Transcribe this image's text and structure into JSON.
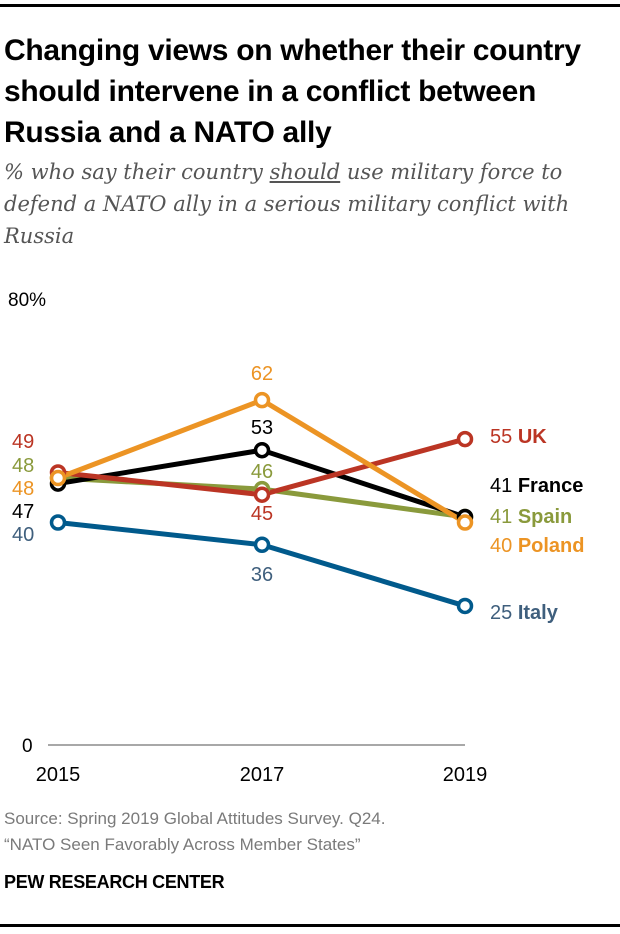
{
  "title": "Changing views on whether their country should intervene in a conflict between Russia and a NATO ally",
  "subtitle": {
    "before": "% who say their country ",
    "underlined": "should",
    "after": " use military force to defend a NATO ally in a serious military conflict with Russia"
  },
  "source": {
    "line1": "Source: Spring 2019 Global Attitudes Survey. Q24.",
    "line2": "“NATO Seen Favorably Across Member States”"
  },
  "brand": "PEW RESEARCH CENTER",
  "chart_data": {
    "type": "line",
    "title": "Changing views on whether their country should intervene in a conflict between Russia and a NATO ally",
    "x": [
      "2015",
      "2017",
      "2019"
    ],
    "xlabel": "",
    "ylabel": "",
    "ylim": [
      0,
      80
    ],
    "y_tick_labels": [
      "0",
      "80%"
    ],
    "grid": false,
    "legend": "direct labels at right end of lines",
    "series": [
      {
        "name": "Italy",
        "color": "#015a8c",
        "label_color": "#3f5f7d",
        "values": [
          40,
          36,
          25
        ]
      },
      {
        "name": "Spain",
        "color": "#8a9a3c",
        "label_color": "#8a9a3c",
        "values": [
          48,
          46,
          41
        ]
      },
      {
        "name": "France",
        "color": "#000000",
        "label_color": "#000000",
        "values": [
          47,
          53,
          41
        ]
      },
      {
        "name": "UK",
        "color": "#bb3524",
        "label_color": "#bb3524",
        "values": [
          49,
          45,
          55
        ]
      },
      {
        "name": "Poland",
        "color": "#ec9424",
        "label_color": "#ec9424",
        "values": [
          48,
          62,
          40
        ]
      }
    ]
  }
}
